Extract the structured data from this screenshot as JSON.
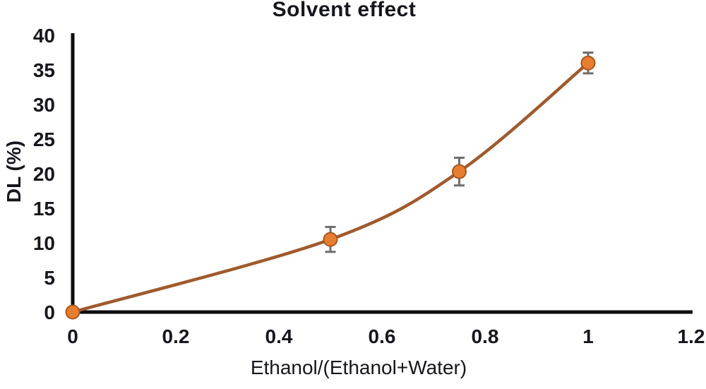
{
  "chart_data": {
    "type": "line",
    "title": "Solvent effect",
    "xlabel": "Ethanol/(Ethanol+Water)",
    "ylabel": "DL (%)",
    "x": [
      0,
      0.5,
      0.75,
      1
    ],
    "series": [
      {
        "name": "DL (%)",
        "values": [
          0,
          10.5,
          20.3,
          36
        ],
        "y_error": [
          0,
          1.8,
          2,
          1.5
        ]
      }
    ],
    "xlim": [
      0,
      1.2
    ],
    "ylim": [
      0,
      40
    ],
    "x_ticks": [
      0,
      0.2,
      0.4,
      0.6,
      0.8,
      1,
      1.2
    ],
    "y_ticks": [
      0,
      5,
      10,
      15,
      20,
      25,
      30,
      35,
      40
    ],
    "grid": false,
    "legend": false,
    "marker": "circle",
    "smooth": true
  },
  "colors": {
    "line": "#A05A2D",
    "marker_fill": "#E87D30",
    "marker_border": "#A9561E",
    "error_bar": "#6E6E6E",
    "axis": "#0D0D0D",
    "text": "#16161E"
  }
}
